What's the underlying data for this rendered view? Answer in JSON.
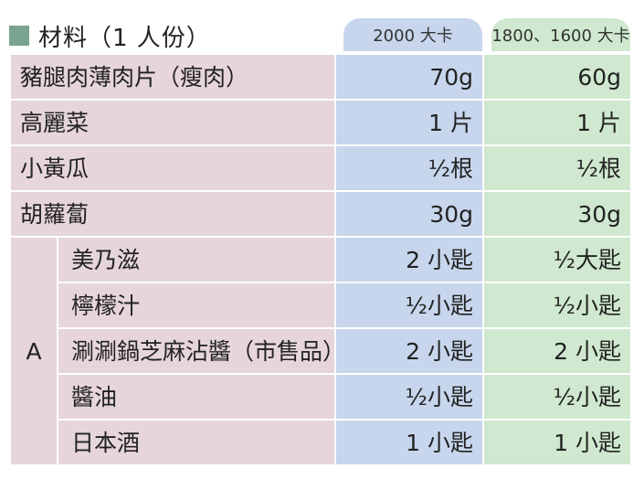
{
  "header": {
    "title": "材料（1 人份）",
    "columns": {
      "kcal_2000": "2000 大卡",
      "kcal_1800_1600": "1800、1600 大卡"
    }
  },
  "rows": [
    {
      "name": "豬腿肉薄肉片（瘦肉）",
      "kcal_2000": "70g",
      "kcal_1800_1600": "60g"
    },
    {
      "name": "高麗菜",
      "kcal_2000": "1 片",
      "kcal_1800_1600": "1 片"
    },
    {
      "name": "小黃瓜",
      "kcal_2000": "½根",
      "kcal_1800_1600": "½根"
    },
    {
      "name": "胡蘿蔔",
      "kcal_2000": "30g",
      "kcal_1800_1600": "30g"
    }
  ],
  "group_a": {
    "label": "A",
    "items": [
      {
        "name": "美乃滋",
        "kcal_2000": "2 小匙",
        "kcal_1800_1600": "½大匙"
      },
      {
        "name": "檸檬汁",
        "kcal_2000": "½小匙",
        "kcal_1800_1600": "½小匙"
      },
      {
        "name": "涮涮鍋芝麻沾醬（市售品）",
        "kcal_2000": "2 小匙",
        "kcal_1800_1600": "2 小匙"
      },
      {
        "name": "醬油",
        "kcal_2000": "½小匙",
        "kcal_1800_1600": "½小匙"
      },
      {
        "name": "日本酒",
        "kcal_2000": "1 小匙",
        "kcal_1800_1600": "1 小匙"
      }
    ]
  }
}
